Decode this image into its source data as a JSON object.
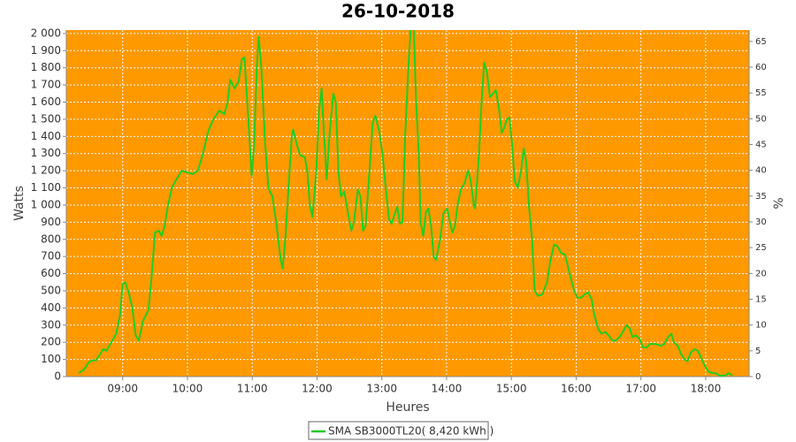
{
  "chart_data": {
    "type": "line",
    "title": "26-10-2018",
    "x_label": "Heures",
    "y_label": "Watts",
    "y2_label": "%",
    "xlim": [
      8.13,
      18.67
    ],
    "xticks": [
      {
        "value": 9,
        "label": "09:00"
      },
      {
        "value": 10,
        "label": "10:00"
      },
      {
        "value": 11,
        "label": "11:00"
      },
      {
        "value": 12,
        "label": "12:00"
      },
      {
        "value": 13,
        "label": "13:00"
      },
      {
        "value": 14,
        "label": "14:00"
      },
      {
        "value": 15,
        "label": "15:00"
      },
      {
        "value": 16,
        "label": "16:00"
      },
      {
        "value": 17,
        "label": "17:00"
      },
      {
        "value": 18,
        "label": "18:00"
      }
    ],
    "ylim": [
      0,
      2020
    ],
    "yticks": [
      0,
      100,
      200,
      300,
      400,
      500,
      600,
      700,
      800,
      900,
      {
        "value": 1000,
        "label": "1 000"
      },
      {
        "value": 1100,
        "label": "1 100"
      },
      {
        "value": 1200,
        "label": "1 200"
      },
      {
        "value": 1300,
        "label": "1 300"
      },
      {
        "value": 1400,
        "label": "1 400"
      },
      {
        "value": 1500,
        "label": "1 500"
      },
      {
        "value": 1600,
        "label": "1 600"
      },
      {
        "value": 1700,
        "label": "1 700"
      },
      {
        "value": 1800,
        "label": "1 800"
      },
      {
        "value": 1900,
        "label": "1 900"
      },
      {
        "value": 2000,
        "label": "2 000"
      }
    ],
    "y2lim": [
      0,
      67.2
    ],
    "y2ticks": [
      0,
      5,
      10,
      15,
      20,
      25,
      30,
      35,
      40,
      45,
      50,
      55,
      60,
      65
    ],
    "grid": true,
    "background": "#ff9900",
    "legend": "bottom",
    "x": [
      8.32,
      8.4,
      8.47,
      8.52,
      8.59,
      8.65,
      8.7,
      8.75,
      8.81,
      8.9,
      8.96,
      9.0,
      9.04,
      9.1,
      9.15,
      9.2,
      9.25,
      9.31,
      9.4,
      9.45,
      9.5,
      9.56,
      9.6,
      9.65,
      9.7,
      9.76,
      9.83,
      9.91,
      10.0,
      10.08,
      10.16,
      10.24,
      10.32,
      10.4,
      10.49,
      10.57,
      10.62,
      10.66,
      10.73,
      10.79,
      10.84,
      10.88,
      10.94,
      10.99,
      11.03,
      11.07,
      11.1,
      11.14,
      11.2,
      11.25,
      11.31,
      11.37,
      11.44,
      11.47,
      11.51,
      11.56,
      11.61,
      11.63,
      11.69,
      11.74,
      11.81,
      11.85,
      11.89,
      11.93,
      11.99,
      12.03,
      12.07,
      12.11,
      12.15,
      12.19,
      12.25,
      12.29,
      12.33,
      12.37,
      12.42,
      12.48,
      12.53,
      12.57,
      12.63,
      12.67,
      12.71,
      12.75,
      12.81,
      12.86,
      12.9,
      12.96,
      13.01,
      13.06,
      13.11,
      13.15,
      13.2,
      13.24,
      13.28,
      13.32,
      13.36,
      13.41,
      13.45,
      13.49,
      13.53,
      13.57,
      13.6,
      13.64,
      13.68,
      13.72,
      13.76,
      13.8,
      13.84,
      13.9,
      13.95,
      14.01,
      14.05,
      14.09,
      14.13,
      14.17,
      14.22,
      14.28,
      14.33,
      14.37,
      14.42,
      14.44,
      14.5,
      14.54,
      14.58,
      14.62,
      14.67,
      14.72,
      14.76,
      14.81,
      14.85,
      14.89,
      14.93,
      14.97,
      15.01,
      15.05,
      15.1,
      15.15,
      15.19,
      15.23,
      15.27,
      15.32,
      15.36,
      15.41,
      15.48,
      15.55,
      15.6,
      15.66,
      15.71,
      15.77,
      15.83,
      15.9,
      15.97,
      16.02,
      16.08,
      16.13,
      16.19,
      16.24,
      16.28,
      16.34,
      16.39,
      16.45,
      16.5,
      16.56,
      16.61,
      16.67,
      16.72,
      16.78,
      16.83,
      16.87,
      16.92,
      16.98,
      17.03,
      17.09,
      17.14,
      17.22,
      17.31,
      17.36,
      17.42,
      17.47,
      17.51,
      17.57,
      17.62,
      17.67,
      17.72,
      17.77,
      17.83,
      17.88,
      17.93,
      17.99,
      18.04,
      18.1,
      18.15,
      18.22,
      18.29,
      18.36,
      18.41
    ],
    "series": [
      {
        "name": "SMA SB3000TL20( 8,420 kWh )",
        "color": "#22cc22",
        "values": [
          20,
          40,
          80,
          95,
          95,
          130,
          160,
          150,
          190,
          250,
          360,
          540,
          550,
          480,
          400,
          240,
          210,
          320,
          390,
          600,
          840,
          850,
          820,
          880,
          1000,
          1100,
          1150,
          1200,
          1190,
          1180,
          1200,
          1300,
          1430,
          1500,
          1550,
          1530,
          1600,
          1730,
          1680,
          1720,
          1850,
          1860,
          1500,
          1170,
          1350,
          1800,
          1980,
          1800,
          1350,
          1100,
          1050,
          900,
          680,
          630,
          800,
          1100,
          1400,
          1440,
          1350,
          1290,
          1280,
          1200,
          1000,
          930,
          1200,
          1550,
          1680,
          1400,
          1150,
          1400,
          1650,
          1600,
          1200,
          1050,
          1080,
          950,
          850,
          900,
          1090,
          1050,
          850,
          880,
          1200,
          1480,
          1520,
          1430,
          1300,
          1100,
          920,
          890,
          950,
          990,
          890,
          900,
          1400,
          1800,
          2060,
          2060,
          1600,
          1300,
          900,
          820,
          960,
          980,
          880,
          700,
          680,
          800,
          950,
          980,
          900,
          840,
          880,
          1000,
          1090,
          1130,
          1200,
          1150,
          1000,
          980,
          1300,
          1600,
          1830,
          1780,
          1630,
          1650,
          1670,
          1560,
          1420,
          1450,
          1500,
          1510,
          1360,
          1140,
          1100,
          1200,
          1330,
          1250,
          1000,
          800,
          500,
          470,
          480,
          550,
          670,
          770,
          760,
          720,
          710,
          600,
          500,
          460,
          460,
          480,
          490,
          450,
          360,
          280,
          250,
          260,
          240,
          210,
          210,
          230,
          260,
          300,
          280,
          230,
          240,
          220,
          170,
          170,
          190,
          190,
          180,
          190,
          230,
          250,
          200,
          180,
          130,
          100,
          90,
          140,
          160,
          150,
          110,
          60,
          30,
          20,
          20,
          5,
          5,
          20,
          5
        ]
      }
    ]
  }
}
